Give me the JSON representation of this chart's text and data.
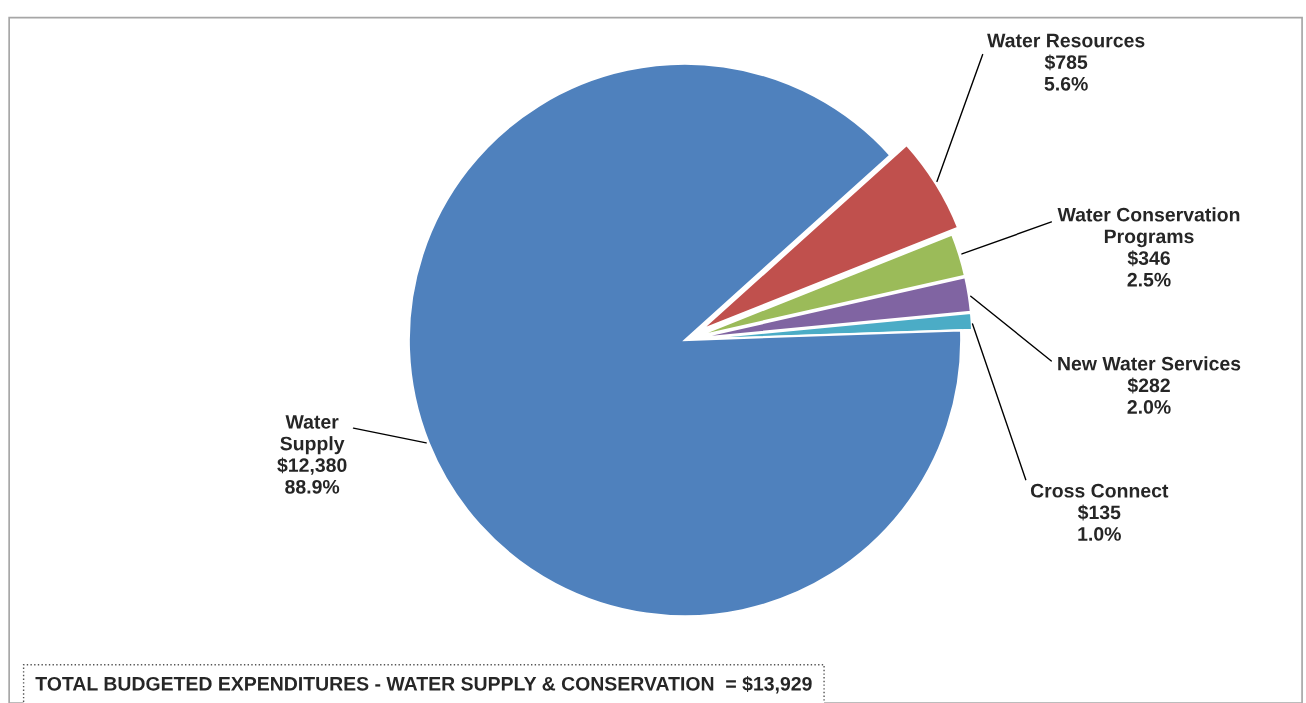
{
  "chart_data": {
    "type": "pie",
    "categories": [
      "Water Resources",
      "Water Conservation\nPrograms",
      "New Water Services",
      "Cross Connect",
      "Water\nSupply"
    ],
    "values": [
      785,
      346,
      282,
      135,
      12380
    ],
    "value_labels": [
      "$785\n5.6%",
      "$346\n2.5%",
      "$282\n2.0%",
      "$135\n1.0%",
      "$12,380\n88.9%"
    ],
    "colors": [
      "#c0504d",
      "#9bbb59",
      "#8064a2",
      "#4bacc6",
      "#4f81bd"
    ],
    "annotations": [
      "TOTAL BUDGETED EXPENDITURES - WATER SUPPLY & CONSERVATION  = $13,929"
    ],
    "legend": false
  }
}
